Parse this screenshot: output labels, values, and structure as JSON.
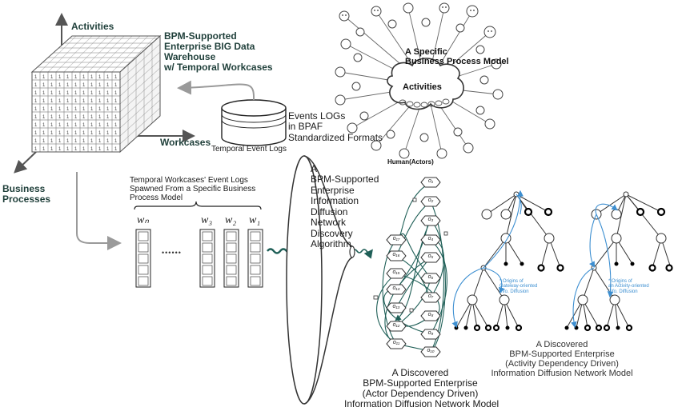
{
  "cube": {
    "axis_y_label": "Activities",
    "axis_x_label": "Workcases",
    "axis_z_label": "Business\nProcesses",
    "title": "BPM-Supported\nEnterprise BIG Data\nWarehouse\nw/ Temporal Workcases"
  },
  "event_logs": {
    "db_label": "Temporal Event Logs",
    "side_label": "Events LOGs\nin BPAF\nStandardized Formats"
  },
  "process_model": {
    "title": "A Specific\nBusiness Process Model",
    "center_label": "Activities",
    "actors_label": "Human(Actors)"
  },
  "workcases": {
    "caption": "Temporal Workcases' Event Logs\nSpawned From a Specific Business\nProcess Model",
    "columns": [
      "wₙ",
      "w₃",
      "w₂",
      "w₁"
    ],
    "ellipsis": "••••••"
  },
  "algorithm": {
    "label": "A\nBPM-Supported\nEnterprise\nInformation\nDiffusion\nNetwork\nDiscovery\nAlgorithm"
  },
  "actor_network": {
    "caption": "A Discovered\nBPM-Supported Enterprise\n(Actor Dependency Driven)\nInformation Diffusion Network Model",
    "nodes": [
      "o₁",
      "o₂",
      "o₃",
      "o₄",
      "o₅",
      "o₆",
      "o₇",
      "o₈",
      "o₉",
      "o₁₀",
      "o₁₁",
      "o₁₂",
      "o₁₃",
      "o₁₄",
      "o₁₅",
      "o₁₆",
      "o₁₇"
    ]
  },
  "activity_network": {
    "caption": "A Discovered\nBPM-Supported Enterprise\n(Activity Dependency Driven)\nInformation Diffusion Network Model",
    "tree1_note": "* Origins of\nGateway-oriented\nInfo. Diffusion",
    "tree2_note": "* Origins of\nan Activity-oriented\nInfo. Diffusion"
  },
  "colors": {
    "accent": "#1f5f57",
    "diffusion_blue": "#3d8fd1",
    "arrow_gray": "#9a9a9a"
  }
}
